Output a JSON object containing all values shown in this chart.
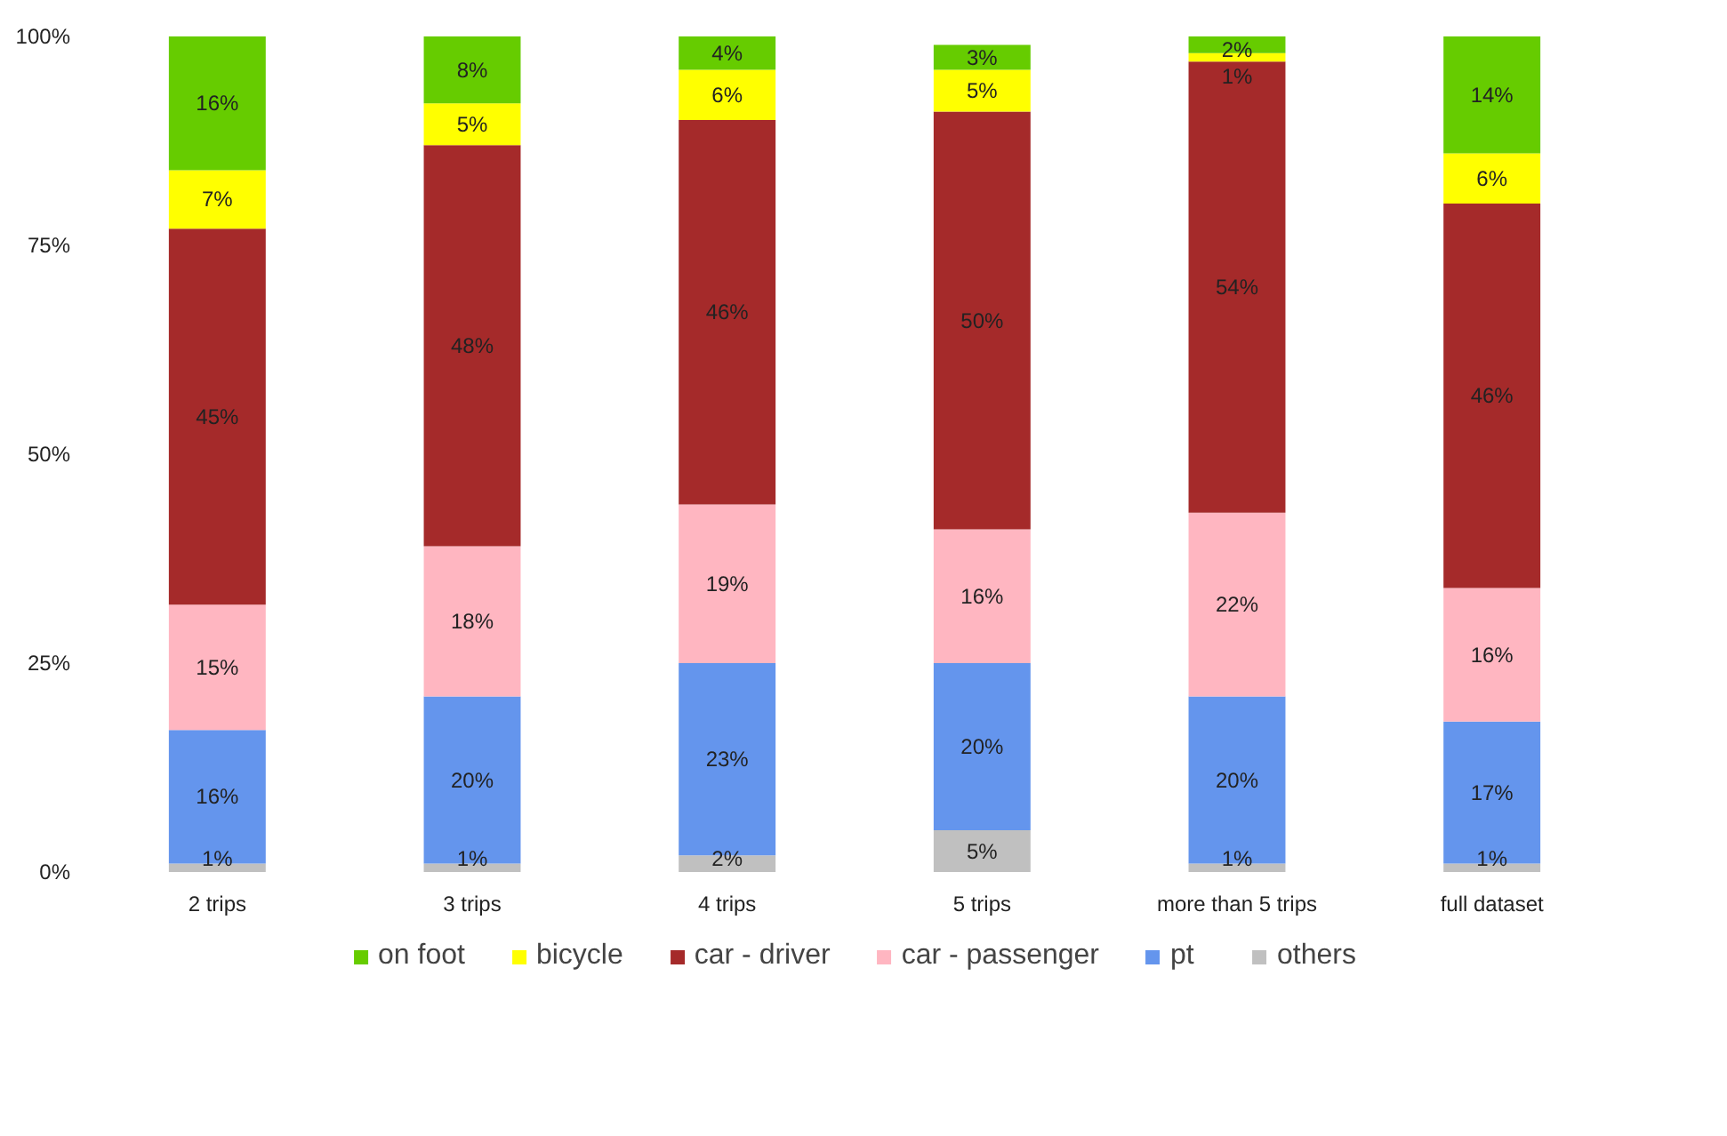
{
  "chart_data": {
    "type": "bar",
    "stacked": true,
    "categories": [
      "2 trips",
      "3 trips",
      "4 trips",
      "5 trips",
      "more than 5 trips",
      "full dataset"
    ],
    "series": [
      {
        "name": "others",
        "color": "#c0c0c0",
        "values": [
          1,
          1,
          2,
          5,
          1,
          1
        ],
        "value_labels": [
          "1%",
          "1%",
          "2%",
          "5%",
          "1%",
          "1%"
        ]
      },
      {
        "name": "pt",
        "color": "#6495ed",
        "values": [
          16,
          20,
          23,
          20,
          20,
          17
        ],
        "value_labels": [
          "16%",
          "20%",
          "23%",
          "20%",
          "20%",
          "17%"
        ]
      },
      {
        "name": "car - passenger",
        "color": "#ffb6c1",
        "values": [
          15,
          18,
          19,
          16,
          22,
          16
        ],
        "value_labels": [
          "15%",
          "18%",
          "19%",
          "16%",
          "22%",
          "16%"
        ]
      },
      {
        "name": "car - driver",
        "color": "#a52a2a",
        "values": [
          45,
          48,
          46,
          50,
          54,
          46
        ],
        "value_labels": [
          "45%",
          "48%",
          "46%",
          "50%",
          "54%",
          "46%"
        ]
      },
      {
        "name": "bicycle",
        "color": "#ffff00",
        "values": [
          7,
          5,
          6,
          5,
          1,
          6
        ],
        "value_labels": [
          "7%",
          "5%",
          "6%",
          "5%",
          "1%",
          "6%"
        ]
      },
      {
        "name": "on foot",
        "color": "#66cc00",
        "values": [
          16,
          8,
          4,
          3,
          2,
          14
        ],
        "value_labels": [
          "16%",
          "8%",
          "4%",
          "3%",
          "2%",
          "14%"
        ]
      }
    ],
    "ylim": [
      0,
      100
    ],
    "yticks": [
      {
        "value": 0,
        "label": "0%"
      },
      {
        "value": 25,
        "label": "25%"
      },
      {
        "value": 50,
        "label": "50%"
      },
      {
        "value": 75,
        "label": "75%"
      },
      {
        "value": 100,
        "label": "100%"
      }
    ],
    "data_labels": true,
    "grid": false,
    "legend": "bottom"
  }
}
